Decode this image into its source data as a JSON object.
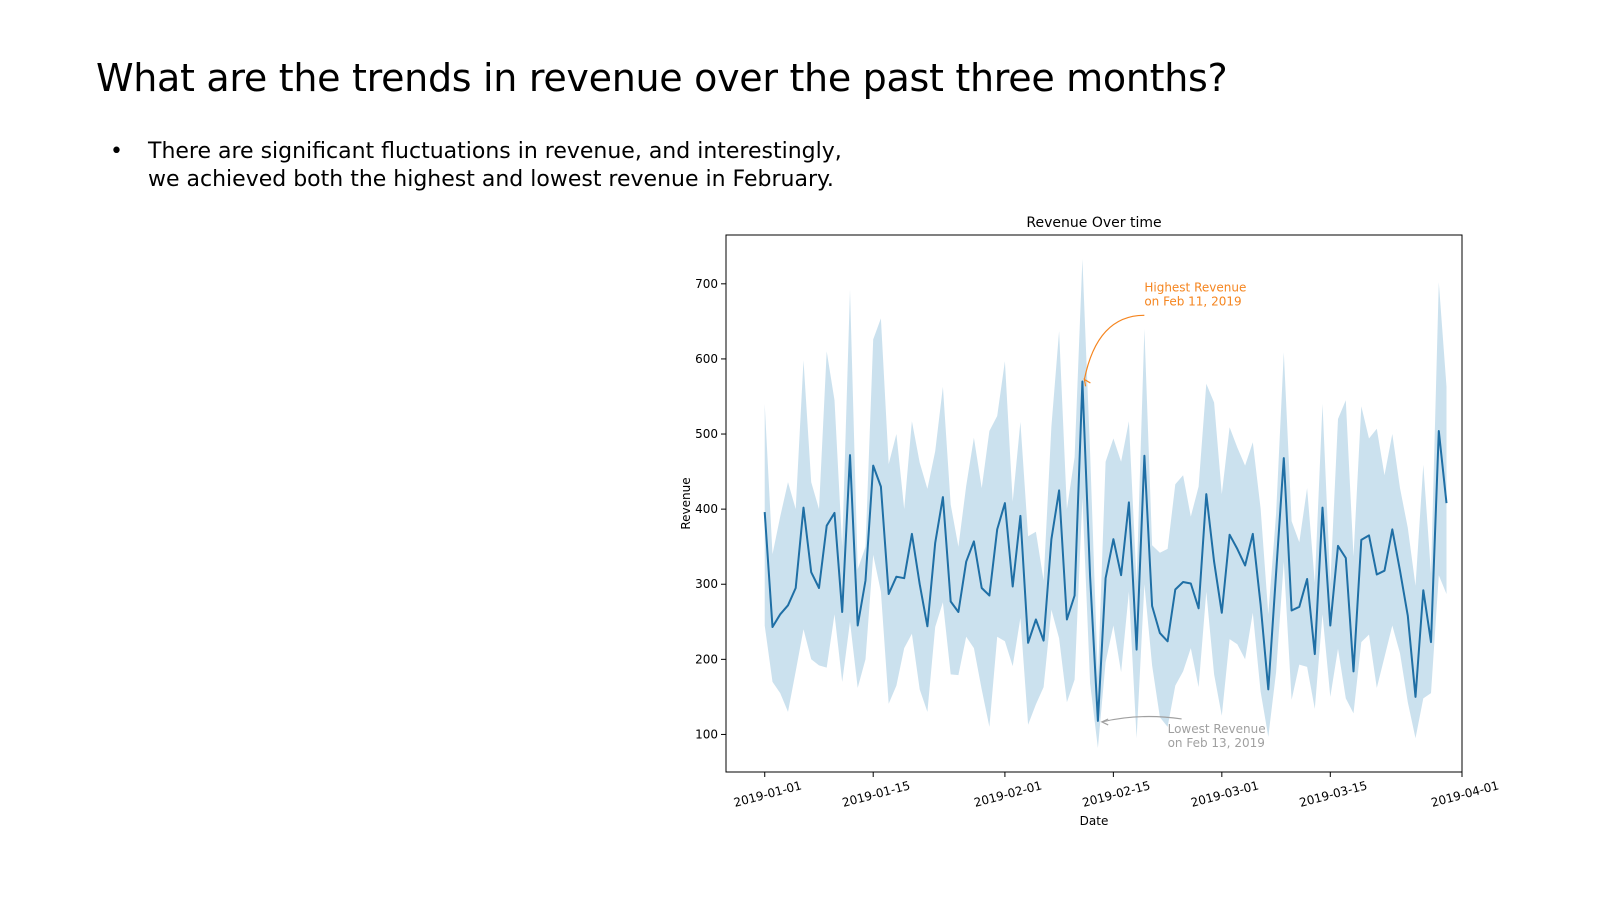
{
  "slide": {
    "title": "What are the trends in revenue over the past three months?",
    "bullets": [
      "There are significant fluctuations in revenue, and interestingly, we achieved both the highest and lowest revenue in February."
    ]
  },
  "chart_data": {
    "type": "line",
    "title": "Revenue Over time",
    "xlabel": "Date",
    "ylabel": "Revenue",
    "x_start": "2019-01-01",
    "x_ticks": [
      "2019-01-01",
      "2019-01-15",
      "2019-02-01",
      "2019-02-15",
      "2019-03-01",
      "2019-03-15",
      "2019-04-01"
    ],
    "y_ticks": [
      100,
      200,
      300,
      400,
      500,
      600,
      700
    ],
    "xlim": [
      "2018-12-27",
      "2019-04-01"
    ],
    "ylim": [
      50,
      765
    ],
    "grid": false,
    "colors": {
      "line": "#1f6fa5",
      "band": "#a9cde3",
      "highlight": "#f5851f",
      "muted": "#a0a0a0"
    },
    "series": [
      {
        "x": [
          "2019-01-01",
          "2019-01-02",
          "2019-01-03",
          "2019-01-04",
          "2019-01-05",
          "2019-01-06",
          "2019-01-07",
          "2019-01-08",
          "2019-01-09",
          "2019-01-10",
          "2019-01-11",
          "2019-01-12",
          "2019-01-13",
          "2019-01-14",
          "2019-01-15",
          "2019-01-16",
          "2019-01-17",
          "2019-01-18",
          "2019-01-19",
          "2019-01-20",
          "2019-01-21",
          "2019-01-22",
          "2019-01-23",
          "2019-01-24",
          "2019-01-25",
          "2019-01-26",
          "2019-01-27",
          "2019-01-28",
          "2019-01-29",
          "2019-01-30",
          "2019-01-31",
          "2019-02-01",
          "2019-02-02",
          "2019-02-03",
          "2019-02-04",
          "2019-02-05",
          "2019-02-06",
          "2019-02-07",
          "2019-02-08",
          "2019-02-09",
          "2019-02-10",
          "2019-02-11",
          "2019-02-12",
          "2019-02-13",
          "2019-02-14",
          "2019-02-15",
          "2019-02-16",
          "2019-02-17",
          "2019-02-18",
          "2019-02-19",
          "2019-02-20",
          "2019-02-21",
          "2019-02-22",
          "2019-02-23",
          "2019-02-24",
          "2019-02-25",
          "2019-02-26",
          "2019-02-27",
          "2019-02-28",
          "2019-03-01",
          "2019-03-02",
          "2019-03-03",
          "2019-03-04",
          "2019-03-05",
          "2019-03-06",
          "2019-03-07",
          "2019-03-08",
          "2019-03-09",
          "2019-03-10",
          "2019-03-11",
          "2019-03-12",
          "2019-03-13",
          "2019-03-14",
          "2019-03-15",
          "2019-03-16",
          "2019-03-17",
          "2019-03-18",
          "2019-03-19",
          "2019-03-20",
          "2019-03-21",
          "2019-03-22",
          "2019-03-23",
          "2019-03-24",
          "2019-03-25",
          "2019-03-26",
          "2019-03-27",
          "2019-03-28",
          "2019-03-29",
          "2019-03-30"
        ],
        "values": [
          396,
          243,
          260,
          272,
          295,
          402,
          316,
          295,
          378,
          395,
          263,
          472,
          245,
          305,
          458,
          430,
          287,
          310,
          308,
          367,
          300,
          244,
          355,
          416,
          277,
          263,
          330,
          357,
          295,
          285,
          373,
          408,
          297,
          391,
          222,
          253,
          225,
          360,
          425,
          253,
          285,
          570,
          310,
          118,
          308,
          360,
          312,
          409,
          213,
          471,
          271,
          235,
          224,
          293,
          303,
          301,
          268,
          420,
          330,
          262,
          366,
          347,
          325,
          367,
          273,
          160,
          315,
          468,
          265,
          270,
          307,
          207,
          402,
          245,
          351,
          335,
          184,
          359,
          365,
          313,
          318,
          373,
          318,
          258,
          150,
          292,
          223,
          504,
          408
        ],
        "band_upper": [
          540,
          340,
          390,
          436,
          400,
          598,
          436,
          400,
          610,
          545,
          350,
          692,
          320,
          350,
          626,
          654,
          460,
          500,
          400,
          517,
          462,
          427,
          477,
          563,
          406,
          350,
          431,
          495,
          428,
          504,
          524,
          597,
          410,
          516,
          364,
          370,
          305,
          510,
          637,
          400,
          469,
          733,
          475,
          175,
          463,
          494,
          463,
          517,
          304,
          640,
          352,
          342,
          347,
          433,
          445,
          390,
          430,
          567,
          542,
          420,
          509,
          482,
          458,
          489,
          401,
          260,
          394,
          609,
          384,
          356,
          428,
          302,
          540,
          301,
          520,
          545,
          337,
          537,
          494,
          507,
          445,
          500,
          428,
          375,
          298,
          459,
          314,
          702,
          563
        ],
        "band_lower": [
          245,
          170,
          155,
          130,
          184,
          240,
          200,
          192,
          189,
          260,
          170,
          250,
          162,
          200,
          339,
          290,
          141,
          165,
          215,
          234,
          160,
          130,
          243,
          276,
          180,
          179,
          230,
          215,
          160,
          110,
          230,
          224,
          191,
          255,
          113,
          140,
          163,
          266,
          228,
          143,
          173,
          415,
          168,
          82,
          196,
          245,
          183,
          290,
          95,
          300,
          192,
          123,
          110,
          165,
          184,
          215,
          163,
          290,
          180,
          125,
          227,
          220,
          200,
          262,
          157,
          97,
          183,
          330,
          146,
          193,
          190,
          134,
          260,
          150,
          214,
          148,
          128,
          223,
          233,
          162,
          203,
          245,
          208,
          143,
          95,
          148,
          155,
          312,
          287
        ]
      }
    ],
    "annotations": [
      {
        "text_lines": [
          "Highest Revenue",
          "on Feb 11, 2019"
        ],
        "point_x": "2019-02-11",
        "point_y": 570,
        "text_x": "2019-02-19",
        "text_y": 690,
        "color": "#f5851f"
      },
      {
        "text_lines": [
          "Lowest Revenue",
          "on Feb 13, 2019"
        ],
        "point_x": "2019-02-13",
        "point_y": 118,
        "text_x": "2019-02-22",
        "text_y": 102,
        "color": "#a0a0a0"
      }
    ]
  }
}
